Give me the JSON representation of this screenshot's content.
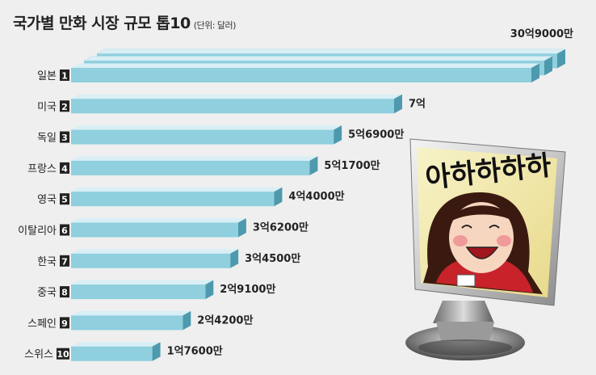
{
  "chart_data": {
    "type": "bar",
    "orientation": "horizontal",
    "title": "국가별 만화 시장 규모 톱10",
    "unit_note": "(단위: 달러)",
    "categories": [
      "일본",
      "미국",
      "독일",
      "프랑스",
      "영국",
      "이탈리아",
      "한국",
      "중국",
      "스페인",
      "스위스"
    ],
    "ranks": [
      "1",
      "2",
      "3",
      "4",
      "5",
      "6",
      "7",
      "8",
      "9",
      "10"
    ],
    "values": [
      3090000000,
      700000000,
      569000000,
      517000000,
      440000000,
      362000000,
      345000000,
      291000000,
      242000000,
      176000000
    ],
    "value_labels": [
      "30억9000만",
      "7억",
      "5억6900만",
      "5억1700만",
      "4억4000만",
      "3억6200만",
      "3억4500만",
      "2억9100만",
      "2억4200만",
      "1억7600만"
    ],
    "axis_break_on_first": true,
    "colors": {
      "bar_front": "#8fcfde",
      "bar_top": "#d8eff5",
      "bar_side": "#4d99ad",
      "rank_box": "#222222",
      "background": "#efefef"
    }
  },
  "illustration": {
    "description_icon": "monitor-cartoon-laughing-girl",
    "speech_text": "아하하하하"
  }
}
